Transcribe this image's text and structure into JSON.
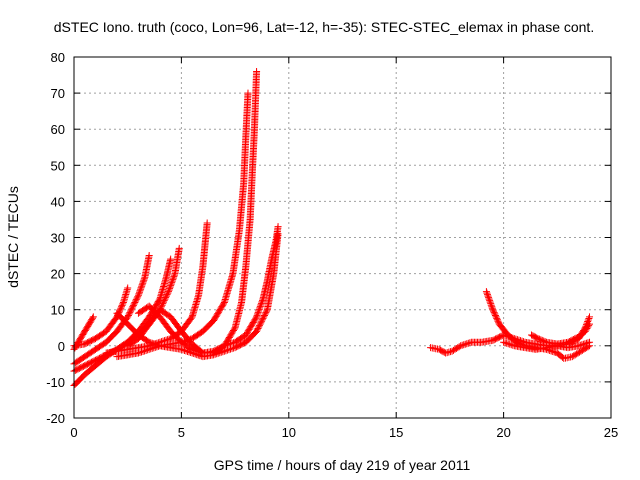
{
  "chart_data": {
    "type": "scatter",
    "title": "dSTEC Iono. truth (coco, Lon=96, Lat=-12, h=-35): STEC-STEC_elemax in phase cont.",
    "xlabel": "GPS time / hours of day 219 of year 2011",
    "ylabel": "dSTEC  / TECUs",
    "xlim": [
      0,
      25
    ],
    "ylim": [
      -20,
      80
    ],
    "xticks": [
      0,
      5,
      10,
      15,
      20,
      25
    ],
    "yticks": [
      -20,
      -10,
      0,
      10,
      20,
      30,
      40,
      50,
      60,
      70,
      80
    ],
    "grid": true,
    "marker": "+",
    "color": "#ff0000",
    "series": [
      {
        "values": [
          [
            0.0,
            -1.0
          ],
          [
            0.3,
            2.0
          ],
          [
            0.6,
            5.0
          ],
          [
            0.9,
            8.0
          ]
        ]
      },
      {
        "values": [
          [
            0.0,
            0.0
          ],
          [
            0.5,
            0.5
          ],
          [
            1.0,
            2.0
          ],
          [
            1.5,
            4.0
          ],
          [
            2.0,
            8.0
          ],
          [
            2.3,
            12.0
          ],
          [
            2.5,
            16.0
          ]
        ]
      },
      {
        "values": [
          [
            0.0,
            -5.0
          ],
          [
            0.5,
            -3.0
          ],
          [
            1.0,
            -1.0
          ],
          [
            1.5,
            1.0
          ],
          [
            2.0,
            4.0
          ],
          [
            2.5,
            8.0
          ],
          [
            3.0,
            14.0
          ],
          [
            3.3,
            19.0
          ],
          [
            3.5,
            25.0
          ]
        ]
      },
      {
        "values": [
          [
            0.0,
            -7.0
          ],
          [
            0.5,
            -5.5
          ],
          [
            1.0,
            -4.0
          ],
          [
            1.5,
            -2.5
          ],
          [
            2.0,
            -1.0
          ],
          [
            2.5,
            1.0
          ],
          [
            3.0,
            3.0
          ],
          [
            3.5,
            6.0
          ],
          [
            4.0,
            10.0
          ],
          [
            4.4,
            15.0
          ],
          [
            4.7,
            20.0
          ],
          [
            4.9,
            27.0
          ]
        ]
      },
      {
        "values": [
          [
            0.0,
            -11.0
          ],
          [
            0.5,
            -8.0
          ],
          [
            1.0,
            -5.5
          ],
          [
            1.5,
            -3.0
          ],
          [
            2.0,
            -1.0
          ],
          [
            2.5,
            1.0
          ],
          [
            3.0,
            4.0
          ],
          [
            3.5,
            8.0
          ],
          [
            4.0,
            13.0
          ],
          [
            4.3,
            19.0
          ],
          [
            4.5,
            24.0
          ]
        ]
      },
      {
        "values": [
          [
            1.5,
            -2.0
          ],
          [
            2.0,
            -1.5
          ],
          [
            2.5,
            -1.0
          ],
          [
            3.0,
            -0.5
          ],
          [
            3.5,
            0.0
          ],
          [
            4.0,
            1.0
          ],
          [
            4.5,
            2.0
          ],
          [
            5.0,
            4.0
          ],
          [
            5.5,
            8.0
          ],
          [
            5.8,
            14.0
          ],
          [
            6.0,
            22.0
          ],
          [
            6.1,
            28.0
          ],
          [
            6.2,
            34.0
          ]
        ]
      },
      {
        "values": [
          [
            2.0,
            -3.0
          ],
          [
            2.5,
            -2.5
          ],
          [
            3.0,
            -2.0
          ],
          [
            3.5,
            -1.0
          ],
          [
            4.0,
            0.0
          ],
          [
            4.5,
            0.5
          ],
          [
            5.0,
            1.0
          ],
          [
            5.5,
            2.0
          ],
          [
            6.0,
            4.0
          ],
          [
            6.5,
            7.0
          ],
          [
            7.0,
            12.0
          ],
          [
            7.4,
            20.0
          ],
          [
            7.7,
            32.0
          ],
          [
            7.9,
            45.0
          ],
          [
            8.0,
            58.0
          ],
          [
            8.1,
            70.0
          ]
        ]
      },
      {
        "values": [
          [
            2.5,
            0.0
          ],
          [
            3.0,
            2.0
          ],
          [
            3.5,
            6.0
          ],
          [
            4.0,
            10.0
          ],
          [
            4.5,
            8.0
          ],
          [
            5.0,
            4.0
          ],
          [
            5.5,
            0.5
          ],
          [
            6.0,
            -2.0
          ],
          [
            6.5,
            -2.0
          ],
          [
            7.0,
            0.0
          ],
          [
            7.5,
            5.0
          ],
          [
            7.8,
            12.0
          ],
          [
            8.0,
            22.0
          ],
          [
            8.2,
            35.0
          ],
          [
            8.3,
            48.0
          ],
          [
            8.4,
            60.0
          ],
          [
            8.5,
            76.0
          ]
        ]
      },
      {
        "values": [
          [
            3.0,
            9.0
          ],
          [
            3.5,
            11.0
          ],
          [
            4.0,
            8.0
          ],
          [
            4.5,
            4.0
          ],
          [
            5.0,
            1.0
          ],
          [
            5.5,
            -1.0
          ],
          [
            6.0,
            -2.0
          ],
          [
            6.5,
            -1.5
          ],
          [
            7.0,
            0.0
          ],
          [
            7.5,
            1.0
          ],
          [
            8.0,
            3.0
          ],
          [
            8.5,
            8.0
          ],
          [
            8.8,
            13.0
          ],
          [
            9.0,
            18.0
          ],
          [
            9.2,
            24.0
          ],
          [
            9.4,
            29.0
          ],
          [
            9.5,
            33.0
          ]
        ]
      },
      {
        "values": [
          [
            2.0,
            9.0
          ],
          [
            2.5,
            6.0
          ],
          [
            3.0,
            3.0
          ],
          [
            3.5,
            1.0
          ],
          [
            4.0,
            0.0
          ],
          [
            4.5,
            -0.5
          ],
          [
            5.0,
            -1.0
          ],
          [
            5.5,
            -2.0
          ],
          [
            6.0,
            -3.0
          ],
          [
            6.5,
            -2.5
          ],
          [
            7.0,
            -1.5
          ],
          [
            7.5,
            -0.5
          ],
          [
            8.0,
            1.0
          ],
          [
            8.5,
            4.0
          ],
          [
            9.0,
            10.0
          ],
          [
            9.3,
            20.0
          ],
          [
            9.5,
            31.0
          ]
        ]
      },
      {
        "values": [
          [
            16.6,
            -0.5
          ],
          [
            17.0,
            -1.0
          ],
          [
            17.3,
            -2.0
          ],
          [
            17.6,
            -1.5
          ],
          [
            18.0,
            0.0
          ],
          [
            18.5,
            1.0
          ],
          [
            19.0,
            1.0
          ],
          [
            19.5,
            1.5
          ],
          [
            20.0,
            3.0
          ],
          [
            20.5,
            2.0
          ],
          [
            21.0,
            1.0
          ],
          [
            21.5,
            0.5
          ],
          [
            22.0,
            0.0
          ],
          [
            22.5,
            0.0
          ],
          [
            23.0,
            0.5
          ],
          [
            23.5,
            2.0
          ],
          [
            23.8,
            5.0
          ],
          [
            24.0,
            8.0
          ]
        ]
      },
      {
        "values": [
          [
            19.2,
            15.0
          ],
          [
            19.5,
            10.0
          ],
          [
            19.8,
            6.0
          ],
          [
            20.2,
            3.0
          ],
          [
            20.6,
            1.0
          ],
          [
            21.0,
            0.0
          ],
          [
            21.5,
            -0.5
          ],
          [
            22.0,
            -1.0
          ],
          [
            22.5,
            -2.0
          ],
          [
            22.8,
            -3.5
          ],
          [
            23.2,
            -3.0
          ],
          [
            23.6,
            -1.5
          ],
          [
            24.0,
            0.0
          ]
        ]
      },
      {
        "values": [
          [
            20.0,
            1.0
          ],
          [
            20.5,
            0.0
          ],
          [
            21.0,
            -0.5
          ],
          [
            21.5,
            -1.0
          ],
          [
            22.0,
            -0.5
          ],
          [
            22.5,
            0.0
          ],
          [
            23.0,
            -0.5
          ],
          [
            23.5,
            0.0
          ],
          [
            24.0,
            1.0
          ]
        ]
      },
      {
        "values": [
          [
            21.3,
            3.0
          ],
          [
            21.6,
            2.0
          ],
          [
            22.0,
            1.0
          ],
          [
            22.5,
            0.5
          ],
          [
            23.0,
            1.0
          ],
          [
            23.5,
            2.5
          ],
          [
            23.8,
            4.0
          ],
          [
            24.0,
            6.0
          ]
        ]
      }
    ]
  }
}
